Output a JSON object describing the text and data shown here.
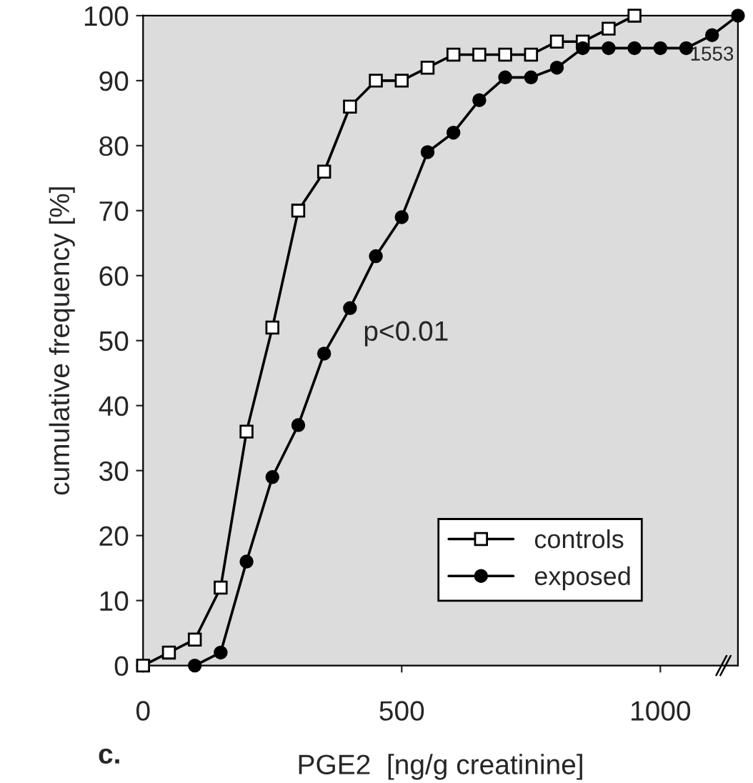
{
  "chart_data": {
    "type": "line",
    "xlabel": "PGE2  [ng/g creatinine]",
    "ylabel": "cumulative frequency [%]",
    "annotations": [
      "c.",
      "p<0.01",
      {
        "text": "1553",
        "x": 1150,
        "y": 100
      }
    ],
    "xlim": [
      0,
      1150
    ],
    "xticks": [
      0,
      500,
      1000
    ],
    "ylim": [
      0,
      100
    ],
    "yticks": [
      0,
      10,
      20,
      30,
      40,
      50,
      60,
      70,
      80,
      90,
      100
    ],
    "grid": false,
    "legend": "bottom right",
    "line_style": "solid",
    "series": [
      {
        "name": "controls",
        "color": "#000000",
        "marker": "square",
        "x": [
          0,
          50,
          100,
          150,
          200,
          250,
          300,
          350,
          400,
          450,
          500,
          550,
          600,
          650,
          700,
          750,
          800,
          850,
          900,
          950
        ],
        "values": [
          0,
          2,
          4,
          12,
          36,
          52,
          70,
          76,
          86,
          90,
          90,
          92,
          94,
          94,
          94,
          94,
          96,
          96,
          98,
          100
        ]
      },
      {
        "name": "exposed",
        "color": "#000000",
        "marker": "circle",
        "x": [
          100,
          150,
          200,
          250,
          300,
          350,
          400,
          450,
          500,
          550,
          600,
          650,
          700,
          750,
          800,
          850,
          900,
          950,
          1000,
          1050,
          1100,
          1150
        ],
        "values": [
          0,
          2,
          16,
          29,
          37,
          48,
          55,
          63,
          69,
          79,
          82,
          87,
          90.5,
          90.5,
          92,
          95,
          95,
          95,
          95,
          95,
          97,
          100
        ]
      }
    ]
  }
}
